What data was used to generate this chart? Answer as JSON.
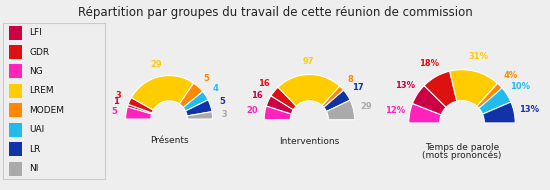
{
  "title": "Répartition par groupes du travail de cette réunion de commission",
  "groups": [
    "LFI",
    "GDR",
    "NG",
    "LREM",
    "MODEM",
    "UAI",
    "LR",
    "NI"
  ],
  "colors": [
    "#cc0044",
    "#dd1111",
    "#ff22bb",
    "#ffcc00",
    "#ff8800",
    "#22bbee",
    "#1133aa",
    "#aaaaaa"
  ],
  "presences": [
    1,
    3,
    5,
    29,
    5,
    4,
    5,
    3
  ],
  "interventions": [
    16,
    16,
    20,
    97,
    8,
    0,
    17,
    29
  ],
  "temps_parole": [
    13,
    18,
    12,
    31,
    4,
    10,
    13,
    0
  ],
  "draw_order": [
    2,
    0,
    1,
    3,
    4,
    5,
    6,
    7
  ],
  "background": "#eeeeee",
  "outer_r": 1.0,
  "inner_r": 0.42
}
